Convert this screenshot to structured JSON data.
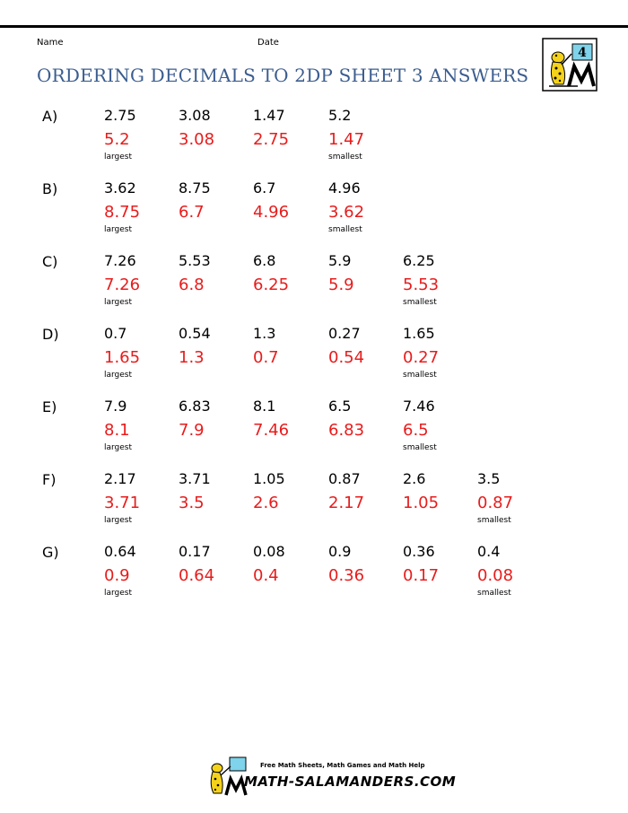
{
  "header": {
    "name_label": "Name",
    "date_label": "Date",
    "title": "ORDERING DECIMALS TO 2DP SHEET 3 ANSWERS",
    "logo_number": "4"
  },
  "questions": [
    {
      "label": "A)",
      "numbers": [
        "2.75",
        "3.08",
        "1.47",
        "5.2"
      ],
      "answers": [
        "5.2",
        "3.08",
        "2.75",
        "1.47"
      ]
    },
    {
      "label": "B)",
      "numbers": [
        "3.62",
        "8.75",
        "6.7",
        "4.96"
      ],
      "answers": [
        "8.75",
        "6.7",
        "4.96",
        "3.62"
      ]
    },
    {
      "label": "C)",
      "numbers": [
        "7.26",
        "5.53",
        "6.8",
        "5.9",
        "6.25"
      ],
      "answers": [
        "7.26",
        "6.8",
        "6.25",
        "5.9",
        "5.53"
      ]
    },
    {
      "label": "D)",
      "numbers": [
        "0.7",
        "0.54",
        "1.3",
        "0.27",
        "1.65"
      ],
      "answers": [
        "1.65",
        "1.3",
        "0.7",
        "0.54",
        "0.27"
      ]
    },
    {
      "label": "E)",
      "numbers": [
        "7.9",
        "6.83",
        "8.1",
        "6.5",
        "7.46"
      ],
      "answers": [
        "8.1",
        "7.9",
        "7.46",
        "6.83",
        "6.5"
      ]
    },
    {
      "label": "F)",
      "numbers": [
        "2.17",
        "3.71",
        "1.05",
        "0.87",
        "2.6",
        "3.5"
      ],
      "answers": [
        "3.71",
        "3.5",
        "2.6",
        "2.17",
        "1.05",
        "0.87"
      ]
    },
    {
      "label": "G)",
      "numbers": [
        "0.64",
        "0.17",
        "0.08",
        "0.9",
        "0.36",
        "0.4"
      ],
      "answers": [
        "0.9",
        "0.64",
        "0.4",
        "0.36",
        "0.17",
        "0.08"
      ]
    }
  ],
  "tags": {
    "largest": "largest",
    "smallest": "smallest"
  },
  "footer": {
    "tagline": "Free Math Sheets, Math Games and Math Help",
    "site": "MATH-SALAMANDERS.COM"
  },
  "colors": {
    "title": "#3b5d8f",
    "answer": "#e81c1c"
  }
}
